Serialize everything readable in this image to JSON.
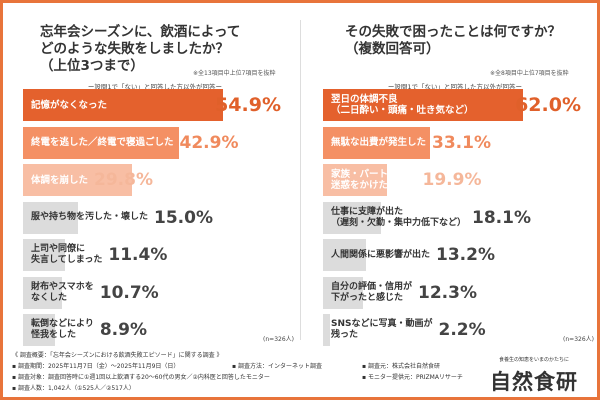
{
  "colors": {
    "frame": "#e8743b",
    "rank1": "#e4612d",
    "rank2": "#f49064",
    "rank3": "#f8bea4",
    "other": "#dcdcdc",
    "rank1_text": "#e0602a",
    "rank2_text": "#f08a5d",
    "rank3_text": "#f5b79a",
    "other_text": "#444444"
  },
  "chart_data": [
    {
      "type": "bar",
      "orientation": "horizontal",
      "title": "忘年会シーズンに、飲酒によって\nどのような失敗をしましたか？\n（上位3つまで）",
      "note": "※全13項目中上位7項目を抜粋",
      "subtitle": "ー設問1で「ない」と回答した方以外が回答ー",
      "n": "(n=326人)",
      "categories": [
        "記憶がなくなった",
        "終電を逃した／終電で寝過ごした",
        "体調を崩した",
        "服や持ち物を汚した・壊した",
        "上司や同僚に\n失言してしまった",
        "財布やスマホを\nなくした",
        "転倒などにより\n怪我をした"
      ],
      "values": [
        54.9,
        42.9,
        29.8,
        15.0,
        11.4,
        10.7,
        8.9
      ],
      "unit": "%"
    },
    {
      "type": "bar",
      "orientation": "horizontal",
      "title": "その失敗で困ったことは何ですか？\n（複数回答可）",
      "note": "※全8項目中上位7項目を抜粋",
      "subtitle": "ー設問1で「ない」と回答した方以外が回答ー",
      "n": "(n=326人)",
      "categories": [
        "翌日の体調不良\n（二日酔い・頭痛・吐き気など）",
        "無駄な出費が発生した",
        "家族・パートナーに\n迷惑をかけた",
        "仕事に支障が出た\n（遅刻・欠勤・集中力低下など）",
        "人間関係に悪影響が出た",
        "自分の評価・信用が\n下がったと感じた",
        "SNSなどに写真・動画が\n残った"
      ],
      "values": [
        62.0,
        33.1,
        19.9,
        18.1,
        13.2,
        12.3,
        2.2
      ],
      "unit": "%"
    }
  ],
  "footer": {
    "heading": "《 調査概要：「忘年会シーズンにおける飲酒失敗エピソード」に関する調査 》",
    "period": "▪ 調査期間：2025年11月7日（金）～2025年11月9日（日）",
    "method": "▪ 調査方法：インターネット調査",
    "source": "▪ 調査元：株式会社自然食研",
    "target": "▪ 調査対象：調査回答時に①週1回以上飲酒する20～60代の男女／②内科医と回答したモニター",
    "provider": "▪ モニター提供元：PRIZMAリサーチ",
    "count": "▪ 調査人数：1,042人（①525人／②517人）"
  },
  "logo": {
    "tagline": "食養生の知恵をいまのかたちに",
    "name": "自然食研"
  }
}
